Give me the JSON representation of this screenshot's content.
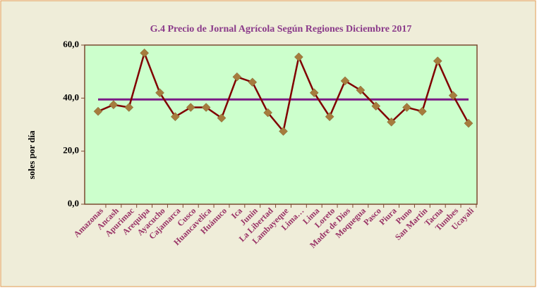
{
  "chart_data": {
    "type": "line",
    "title": "G.4    Precio de Jornal Agrícola Según Regiones Diciembre 2017",
    "y_label": "soles por día",
    "categories": [
      "Amazonas",
      "Ancash",
      "Apurimac",
      "Arequipa",
      "Ayacucho",
      "Cajamarca",
      "Cusco",
      "Huancavelica",
      "Huánuco",
      "Ica",
      "Junin",
      "La Libertad",
      "Lambayeque",
      "Lima…",
      "Lima",
      "Loreto",
      "Madre de Dios",
      "Moquegua",
      "Pasco",
      "Piura",
      "Puno",
      "San Martin",
      "Tacna",
      "Tumbes",
      "Ucayali"
    ],
    "series": [
      {
        "color": "#800000",
        "marker_color": "#a67c3d",
        "values": [
          35,
          37.5,
          36.5,
          57,
          42,
          33,
          36.5,
          36.5,
          32.5,
          48,
          46,
          34.5,
          27.5,
          55.5,
          42,
          33,
          46.5,
          43,
          37,
          31,
          36.5,
          35,
          54,
          41,
          30.5
        ]
      }
    ],
    "reference_line": {
      "value": 39.5,
      "color": "#7b1a86"
    },
    "ylim": [
      0,
      60
    ],
    "yticks": [
      {
        "value": 0,
        "label": "0,0"
      },
      {
        "value": 20,
        "label": "20,0"
      },
      {
        "value": 40,
        "label": "40,0"
      },
      {
        "value": 60,
        "label": "60,0"
      }
    ],
    "grid": false
  }
}
